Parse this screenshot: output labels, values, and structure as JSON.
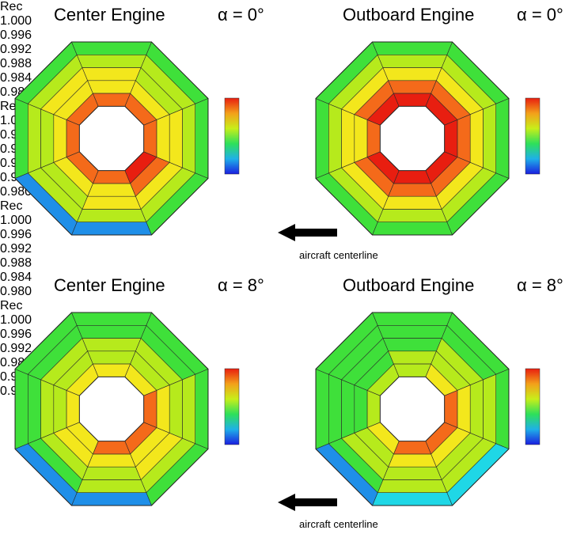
{
  "panels": [
    {
      "title": "Center Engine",
      "alpha_label": "α = 0°",
      "legend_title": "Rec",
      "levels": [
        0.997,
        0.9985,
        0.9995,
        0.9985,
        0.9975,
        0.9975,
        0.998,
        0.998,
        0.997,
        0.996,
        0.993,
        0.992,
        0.99,
        0.9855,
        0.984
      ],
      "bottom_low": true
    },
    {
      "title": "Outboard Engine",
      "alpha_label": "α = 0°",
      "legend_title": "Rec",
      "levels": [
        0.999,
        0.9995,
        0.9995,
        0.9995,
        0.999,
        0.9985,
        0.999,
        0.999
      ],
      "bottom_low": false
    },
    {
      "title": "Center Engine",
      "alpha_label": "α = 8°",
      "legend_title": "Rec",
      "levels": [
        0.996,
        0.9975,
        0.998,
        0.9975,
        0.9965,
        0.996,
        0.996,
        0.996
      ],
      "bottom_low": true
    },
    {
      "title": "Outboard Engine",
      "alpha_label": "α = 8°",
      "legend_title": "Rec",
      "levels": [
        0.995,
        0.997,
        0.9975,
        0.997,
        0.995,
        0.993,
        0.993,
        0.994
      ],
      "bottom_low": true
    }
  ],
  "legend_ticks": [
    "1.000",
    "0.996",
    "0.992",
    "0.988",
    "0.984",
    "0.980"
  ],
  "arrows": [
    {
      "label": "aircraft centerline"
    },
    {
      "label": "aircraft centerline"
    }
  ],
  "colors": {
    "c1000": "#e81e10",
    "c0998": "#f46a1a",
    "c0996": "#f3e71c",
    "c0994": "#b6ea1c",
    "c0992": "#3fe03a",
    "c0988": "#33e4a0",
    "c0986": "#1fd7e6",
    "c0984": "#1f8fe8",
    "c0980": "#1a1ee0"
  }
}
